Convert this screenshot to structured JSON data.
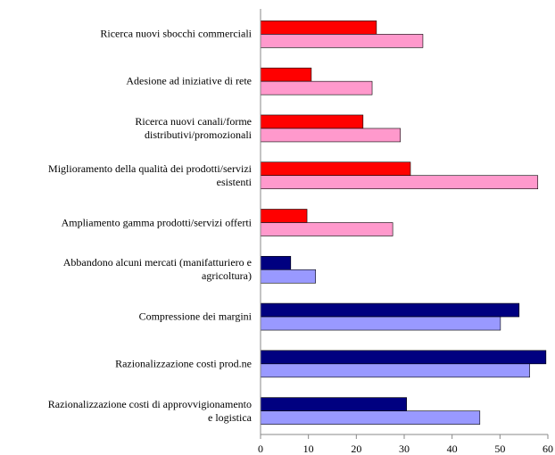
{
  "chart_data": {
    "type": "hbar",
    "categories": [
      "Ricerca nuovi sbocchi commerciali",
      "Adesione ad iniziative di rete",
      "Ricerca nuovi canali/forme\ndistributivi/promozionali",
      "Miglioramento della qualità dei prodotti/servizi\nesistenti",
      "Ampliamento gamma prodotti/servizi offerti",
      "Abbandono alcuni mercati  (manifatturiero e\nagricoltura)",
      "Compressione dei margini",
      "Razionalizzazione costi prod.ne",
      "Razionalizzazione costi di approvvigionamento\ne logistica"
    ],
    "series": [
      {
        "colors": [
          "#ff0000",
          "#ff0000",
          "#ff0000",
          "#ff0000",
          "#ff0000",
          "#000080",
          "#000080",
          "#000080",
          "#000080"
        ],
        "values": [
          24.2,
          10.6,
          21.4,
          31.3,
          9.7,
          6.3,
          54,
          59.6,
          30.5
        ]
      },
      {
        "colors": [
          "#ff99cc",
          "#ff99cc",
          "#ff99cc",
          "#ff99cc",
          "#ff99cc",
          "#9999ff",
          "#9999ff",
          "#9999ff",
          "#9999ff"
        ],
        "values": [
          33.9,
          23.3,
          29.2,
          57.9,
          27.6,
          11.5,
          50.1,
          56.2,
          45.8
        ]
      }
    ],
    "xlim": [
      0,
      60
    ],
    "xticks": [
      0,
      10,
      20,
      30,
      40,
      50,
      60
    ]
  }
}
